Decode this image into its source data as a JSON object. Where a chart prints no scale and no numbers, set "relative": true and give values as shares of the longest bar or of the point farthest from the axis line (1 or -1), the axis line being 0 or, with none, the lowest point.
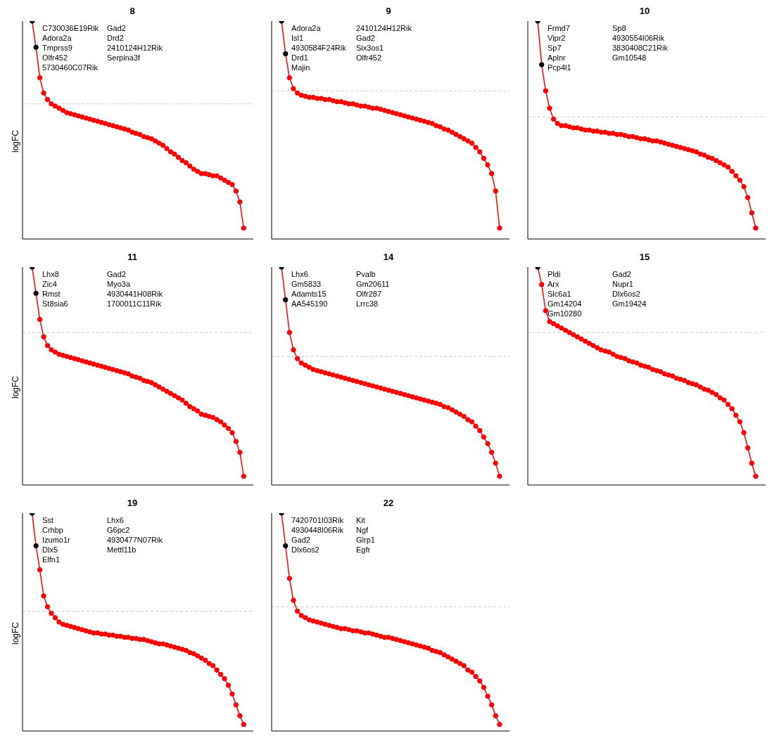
{
  "chart_data": [
    {
      "type": "line",
      "title": "8",
      "ylabel": "logFC",
      "relative": true,
      "marker": "circle",
      "categories": [
        null,
        null,
        null,
        null,
        null,
        null,
        null,
        null,
        null,
        null,
        null,
        null,
        null,
        null,
        null,
        null,
        null,
        null,
        null,
        null,
        null,
        null,
        null,
        null,
        null,
        null,
        null,
        null,
        null,
        null,
        null,
        null,
        null,
        null,
        null,
        null,
        null,
        null,
        null,
        null,
        null,
        null,
        null,
        null,
        null,
        null,
        null,
        null,
        null,
        null,
        null,
        null,
        null,
        null,
        null,
        null,
        null,
        null,
        null,
        null
      ],
      "series": [
        {
          "color": "#ff0000",
          "values": [
            null,
            null,
            1,
            0.88,
            0.74,
            0.67,
            0.64,
            0.62,
            0.61,
            0.6,
            0.59,
            0.58,
            0.575,
            0.57,
            0.565,
            0.56,
            0.555,
            0.55,
            0.545,
            0.54,
            0.535,
            0.53,
            0.525,
            0.52,
            0.515,
            0.51,
            0.505,
            0.5,
            0.49,
            0.485,
            0.48,
            0.47,
            0.465,
            0.46,
            0.45,
            0.44,
            0.43,
            0.415,
            0.4,
            0.39,
            0.375,
            0.36,
            0.35,
            0.335,
            0.32,
            0.31,
            0.3,
            0.3,
            0.295,
            0.29,
            0.29,
            0.28,
            0.27,
            0.26,
            0.25,
            0.22,
            0.17,
            0.05,
            null,
            null
          ],
          "colors": [
            null,
            null,
            "#000000",
            "#000000",
            "#ff0000",
            "#ff0000",
            "#ff0000",
            "#ff0000",
            "#ff0000",
            "#ff0000",
            "#ff0000",
            "#ff0000",
            "#ff0000",
            "#ff0000",
            "#ff0000",
            "#ff0000",
            "#ff0000",
            "#ff0000",
            "#ff0000",
            "#ff0000",
            "#ff0000",
            "#ff0000",
            "#ff0000",
            "#ff0000",
            "#ff0000",
            "#ff0000",
            "#ff0000",
            "#ff0000",
            "#ff0000",
            "#ff0000",
            "#ff0000",
            "#ff0000",
            "#ff0000",
            "#ff0000",
            "#ff0000",
            "#ff0000",
            "#ff0000",
            "#ff0000",
            "#ff0000",
            "#ff0000",
            "#ff0000",
            "#ff0000",
            "#ff0000",
            "#ff0000",
            "#ff0000",
            "#ff0000",
            "#ff0000",
            "#ff0000",
            "#ff0000",
            "#ff0000",
            "#ff0000",
            "#ff0000",
            "#ff0000",
            "#ff0000",
            "#ff0000",
            "#ff0000",
            "#ff0000",
            "#ff0000",
            null,
            null
          ]
        }
      ],
      "ref_lines": [
        {
          "axis": "y",
          "value": 0.62,
          "color": "#cccccc",
          "line_style": "dashed"
        }
      ],
      "annotations": [
        "C730036E19Rik",
        "Gad2",
        "Adora2a",
        "Drd2",
        "Tmprss9",
        "2410124H12Rik",
        "Olfr452",
        "Serpina3f",
        "5730460C07Rik"
      ]
    },
    {
      "type": "line",
      "title": "9",
      "relative": true,
      "marker": "circle",
      "categories": [
        null,
        null,
        null,
        null,
        null,
        null,
        null,
        null,
        null,
        null,
        null,
        null,
        null,
        null,
        null,
        null,
        null,
        null,
        null,
        null,
        null,
        null,
        null,
        null,
        null,
        null,
        null,
        null,
        null,
        null,
        null,
        null,
        null,
        null,
        null,
        null,
        null,
        null,
        null,
        null,
        null,
        null,
        null,
        null,
        null,
        null,
        null,
        null,
        null,
        null,
        null,
        null,
        null,
        null,
        null,
        null,
        null,
        null,
        null,
        null
      ],
      "series": [
        {
          "color": "#ff0000",
          "values": [
            null,
            null,
            1,
            0.85,
            0.74,
            0.69,
            0.67,
            0.66,
            0.655,
            0.65,
            0.65,
            0.645,
            0.645,
            0.64,
            0.64,
            0.635,
            0.63,
            0.63,
            0.625,
            0.62,
            0.62,
            0.615,
            0.61,
            0.61,
            0.605,
            0.6,
            0.6,
            0.595,
            0.59,
            0.585,
            0.58,
            0.575,
            0.57,
            0.565,
            0.56,
            0.555,
            0.55,
            0.545,
            0.54,
            0.535,
            0.53,
            0.52,
            0.515,
            0.505,
            0.5,
            0.49,
            0.48,
            0.47,
            0.46,
            0.45,
            0.44,
            0.42,
            0.4,
            0.37,
            0.34,
            0.3,
            0.22,
            0.05,
            null,
            null
          ],
          "colors": [
            null,
            null,
            "#000000",
            "#000000",
            "#ff0000",
            "#ff0000",
            "#ff0000",
            "#ff0000",
            "#ff0000",
            "#ff0000",
            "#ff0000",
            "#ff0000",
            "#ff0000",
            "#ff0000",
            "#ff0000",
            "#ff0000",
            "#ff0000",
            "#ff0000",
            "#ff0000",
            "#ff0000",
            "#ff0000",
            "#ff0000",
            "#ff0000",
            "#ff0000",
            "#ff0000",
            "#ff0000",
            "#ff0000",
            "#ff0000",
            "#ff0000",
            "#ff0000",
            "#ff0000",
            "#ff0000",
            "#ff0000",
            "#ff0000",
            "#ff0000",
            "#ff0000",
            "#ff0000",
            "#ff0000",
            "#ff0000",
            "#ff0000",
            "#ff0000",
            "#ff0000",
            "#ff0000",
            "#ff0000",
            "#ff0000",
            "#ff0000",
            "#ff0000",
            "#ff0000",
            "#ff0000",
            "#ff0000",
            "#ff0000",
            "#ff0000",
            "#ff0000",
            "#ff0000",
            "#ff0000",
            "#ff0000",
            "#ff0000",
            "#ff0000",
            null,
            null
          ]
        }
      ],
      "ref_lines": [
        {
          "axis": "y",
          "value": 0.68,
          "color": "#cccccc",
          "line_style": "dashed"
        }
      ],
      "annotations": [
        "Adora2a",
        "2410124H12Rik",
        "Isl1",
        "Gad2",
        "4930584F24Rik",
        "Six3os1",
        "Drd1",
        "Olfr452",
        "Majin"
      ]
    },
    {
      "type": "line",
      "title": "10",
      "relative": true,
      "marker": "circle",
      "categories": [
        null,
        null,
        null,
        null,
        null,
        null,
        null,
        null,
        null,
        null,
        null,
        null,
        null,
        null,
        null,
        null,
        null,
        null,
        null,
        null,
        null,
        null,
        null,
        null,
        null,
        null,
        null,
        null,
        null,
        null,
        null,
        null,
        null,
        null,
        null,
        null,
        null,
        null,
        null,
        null,
        null,
        null,
        null,
        null,
        null,
        null,
        null,
        null,
        null,
        null,
        null,
        null,
        null,
        null,
        null,
        null,
        null,
        null,
        null,
        null
      ],
      "series": [
        {
          "color": "#ff0000",
          "values": [
            null,
            null,
            1,
            0.8,
            0.68,
            0.6,
            0.55,
            0.53,
            0.52,
            0.52,
            0.515,
            0.51,
            0.51,
            0.505,
            0.5,
            0.5,
            0.495,
            0.495,
            0.49,
            0.49,
            0.485,
            0.485,
            0.48,
            0.48,
            0.475,
            0.47,
            0.47,
            0.465,
            0.46,
            0.46,
            0.455,
            0.45,
            0.45,
            0.445,
            0.44,
            0.435,
            0.43,
            0.425,
            0.42,
            0.415,
            0.41,
            0.405,
            0.4,
            0.39,
            0.385,
            0.375,
            0.37,
            0.36,
            0.35,
            0.34,
            0.33,
            0.31,
            0.29,
            0.27,
            0.24,
            0.19,
            0.12,
            0.05,
            null,
            null
          ],
          "colors": [
            null,
            null,
            "#000000",
            "#000000",
            "#ff0000",
            "#ff0000",
            "#ff0000",
            "#ff0000",
            "#ff0000",
            "#ff0000",
            "#ff0000",
            "#ff0000",
            "#ff0000",
            "#ff0000",
            "#ff0000",
            "#ff0000",
            "#ff0000",
            "#ff0000",
            "#ff0000",
            "#ff0000",
            "#ff0000",
            "#ff0000",
            "#ff0000",
            "#ff0000",
            "#ff0000",
            "#ff0000",
            "#ff0000",
            "#ff0000",
            "#ff0000",
            "#ff0000",
            "#ff0000",
            "#ff0000",
            "#ff0000",
            "#ff0000",
            "#ff0000",
            "#ff0000",
            "#ff0000",
            "#ff0000",
            "#ff0000",
            "#ff0000",
            "#ff0000",
            "#ff0000",
            "#ff0000",
            "#ff0000",
            "#ff0000",
            "#ff0000",
            "#ff0000",
            "#ff0000",
            "#ff0000",
            "#ff0000",
            "#ff0000",
            "#ff0000",
            "#ff0000",
            "#ff0000",
            "#ff0000",
            "#ff0000",
            "#ff0000",
            "#ff0000",
            null,
            null
          ]
        }
      ],
      "ref_lines": [
        {
          "axis": "y",
          "value": 0.56,
          "color": "#cccccc",
          "line_style": "dashed"
        }
      ],
      "annotations": [
        "Frmd7",
        "Sp8",
        "Vipr2",
        "4930554I06Rik",
        "Sp7",
        "3830408C21Rik",
        "Aplnr",
        "Gm10548",
        "Pcp4l1"
      ]
    },
    {
      "type": "line",
      "title": "11",
      "ylabel": "logFC",
      "relative": true,
      "marker": "circle",
      "categories": [
        null,
        null,
        null,
        null,
        null,
        null,
        null,
        null,
        null,
        null,
        null,
        null,
        null,
        null,
        null,
        null,
        null,
        null,
        null,
        null,
        null,
        null,
        null,
        null,
        null,
        null,
        null,
        null,
        null,
        null,
        null,
        null,
        null,
        null,
        null,
        null,
        null,
        null,
        null,
        null,
        null,
        null,
        null,
        null,
        null,
        null,
        null,
        null,
        null,
        null,
        null,
        null,
        null,
        null,
        null,
        null,
        null,
        null,
        null,
        null
      ],
      "series": [
        {
          "color": "#ff0000",
          "values": [
            null,
            null,
            1,
            0.88,
            0.76,
            0.68,
            0.64,
            0.62,
            0.61,
            0.6,
            0.595,
            0.59,
            0.585,
            0.58,
            0.575,
            0.57,
            0.565,
            0.56,
            0.555,
            0.55,
            0.545,
            0.54,
            0.535,
            0.53,
            0.525,
            0.52,
            0.515,
            0.51,
            0.5,
            0.495,
            0.49,
            0.48,
            0.475,
            0.47,
            0.46,
            0.45,
            0.44,
            0.43,
            0.42,
            0.41,
            0.4,
            0.39,
            0.375,
            0.36,
            0.35,
            0.34,
            0.325,
            0.32,
            0.315,
            0.31,
            0.3,
            0.29,
            0.275,
            0.26,
            0.24,
            0.2,
            0.15,
            0.04,
            null,
            null
          ],
          "colors": [
            null,
            null,
            "#000000",
            "#000000",
            "#ff0000",
            "#ff0000",
            "#ff0000",
            "#ff0000",
            "#ff0000",
            "#ff0000",
            "#ff0000",
            "#ff0000",
            "#ff0000",
            "#ff0000",
            "#ff0000",
            "#ff0000",
            "#ff0000",
            "#ff0000",
            "#ff0000",
            "#ff0000",
            "#ff0000",
            "#ff0000",
            "#ff0000",
            "#ff0000",
            "#ff0000",
            "#ff0000",
            "#ff0000",
            "#ff0000",
            "#ff0000",
            "#ff0000",
            "#ff0000",
            "#ff0000",
            "#ff0000",
            "#ff0000",
            "#ff0000",
            "#ff0000",
            "#ff0000",
            "#ff0000",
            "#ff0000",
            "#ff0000",
            "#ff0000",
            "#ff0000",
            "#ff0000",
            "#ff0000",
            "#ff0000",
            "#ff0000",
            "#ff0000",
            "#ff0000",
            "#ff0000",
            "#ff0000",
            "#ff0000",
            "#ff0000",
            "#ff0000",
            "#ff0000",
            "#ff0000",
            "#ff0000",
            "#ff0000",
            "#ff0000",
            null,
            null
          ]
        }
      ],
      "ref_lines": [
        {
          "axis": "y",
          "value": 0.7,
          "color": "#cccccc",
          "line_style": "dashed"
        }
      ],
      "annotations": [
        "Lhx8",
        "Gad2",
        "Zic4",
        "Myo3a",
        "Rmst",
        "4930441H08Rik",
        "St8sia6",
        "1700011C11Rik"
      ]
    },
    {
      "type": "line",
      "title": "14",
      "relative": true,
      "marker": "circle",
      "categories": [
        null,
        null,
        null,
        null,
        null,
        null,
        null,
        null,
        null,
        null,
        null,
        null,
        null,
        null,
        null,
        null,
        null,
        null,
        null,
        null,
        null,
        null,
        null,
        null,
        null,
        null,
        null,
        null,
        null,
        null,
        null,
        null,
        null,
        null,
        null,
        null,
        null,
        null,
        null,
        null,
        null,
        null,
        null,
        null,
        null,
        null,
        null,
        null,
        null,
        null,
        null,
        null,
        null,
        null,
        null,
        null,
        null,
        null,
        null,
        null
      ],
      "series": [
        {
          "color": "#ff0000",
          "values": [
            null,
            null,
            1,
            0.85,
            0.7,
            0.62,
            0.58,
            0.56,
            0.55,
            0.54,
            0.53,
            0.525,
            0.52,
            0.515,
            0.51,
            0.505,
            0.5,
            0.495,
            0.49,
            0.485,
            0.48,
            0.475,
            0.47,
            0.465,
            0.46,
            0.455,
            0.45,
            0.445,
            0.44,
            0.435,
            0.43,
            0.425,
            0.42,
            0.415,
            0.41,
            0.405,
            0.4,
            0.395,
            0.39,
            0.385,
            0.38,
            0.375,
            0.37,
            0.36,
            0.355,
            0.345,
            0.335,
            0.325,
            0.315,
            0.3,
            0.29,
            0.27,
            0.25,
            0.22,
            0.19,
            0.15,
            0.1,
            0.04,
            null,
            null
          ],
          "colors": [
            null,
            null,
            "#000000",
            "#000000",
            "#ff0000",
            "#ff0000",
            "#ff0000",
            "#ff0000",
            "#ff0000",
            "#ff0000",
            "#ff0000",
            "#ff0000",
            "#ff0000",
            "#ff0000",
            "#ff0000",
            "#ff0000",
            "#ff0000",
            "#ff0000",
            "#ff0000",
            "#ff0000",
            "#ff0000",
            "#ff0000",
            "#ff0000",
            "#ff0000",
            "#ff0000",
            "#ff0000",
            "#ff0000",
            "#ff0000",
            "#ff0000",
            "#ff0000",
            "#ff0000",
            "#ff0000",
            "#ff0000",
            "#ff0000",
            "#ff0000",
            "#ff0000",
            "#ff0000",
            "#ff0000",
            "#ff0000",
            "#ff0000",
            "#ff0000",
            "#ff0000",
            "#ff0000",
            "#ff0000",
            "#ff0000",
            "#ff0000",
            "#ff0000",
            "#ff0000",
            "#ff0000",
            "#ff0000",
            "#ff0000",
            "#ff0000",
            "#ff0000",
            "#ff0000",
            "#ff0000",
            "#ff0000",
            "#ff0000",
            "#ff0000",
            null,
            null
          ]
        }
      ],
      "ref_lines": [
        {
          "axis": "y",
          "value": 0.59,
          "color": "#cccccc",
          "line_style": "dashed"
        }
      ],
      "annotations": [
        "Lhx6",
        "Pvalb",
        "Gm5833",
        "Gm20611",
        "Adamts15",
        "Olfr287",
        "AA545190",
        "Lrrc38"
      ]
    },
    {
      "type": "line",
      "title": "15",
      "relative": true,
      "marker": "circle",
      "categories": [
        null,
        null,
        null,
        null,
        null,
        null,
        null,
        null,
        null,
        null,
        null,
        null,
        null,
        null,
        null,
        null,
        null,
        null,
        null,
        null,
        null,
        null,
        null,
        null,
        null,
        null,
        null,
        null,
        null,
        null,
        null,
        null,
        null,
        null,
        null,
        null,
        null,
        null,
        null,
        null,
        null,
        null,
        null,
        null,
        null,
        null,
        null,
        null,
        null,
        null,
        null,
        null,
        null,
        null,
        null,
        null,
        null,
        null,
        null,
        null
      ],
      "series": [
        {
          "color": "#ff0000",
          "values": [
            null,
            null,
            1,
            0.92,
            0.8,
            0.75,
            0.74,
            0.73,
            0.72,
            0.71,
            0.7,
            0.69,
            0.68,
            0.67,
            0.66,
            0.65,
            0.64,
            0.63,
            0.62,
            0.615,
            0.61,
            0.6,
            0.59,
            0.585,
            0.58,
            0.57,
            0.565,
            0.56,
            0.55,
            0.545,
            0.54,
            0.53,
            0.525,
            0.52,
            0.51,
            0.505,
            0.5,
            0.49,
            0.485,
            0.48,
            0.47,
            0.465,
            0.46,
            0.45,
            0.44,
            0.435,
            0.425,
            0.415,
            0.4,
            0.39,
            0.37,
            0.35,
            0.32,
            0.29,
            0.24,
            0.17,
            0.1,
            0.04,
            null,
            null
          ],
          "colors": [
            null,
            null,
            "#000000",
            "#ff0000",
            "#ff0000",
            "#ff0000",
            "#ff0000",
            "#ff0000",
            "#ff0000",
            "#ff0000",
            "#ff0000",
            "#ff0000",
            "#ff0000",
            "#ff0000",
            "#ff0000",
            "#ff0000",
            "#ff0000",
            "#ff0000",
            "#ff0000",
            "#ff0000",
            "#ff0000",
            "#ff0000",
            "#ff0000",
            "#ff0000",
            "#ff0000",
            "#ff0000",
            "#ff0000",
            "#ff0000",
            "#ff0000",
            "#ff0000",
            "#ff0000",
            "#ff0000",
            "#ff0000",
            "#ff0000",
            "#ff0000",
            "#ff0000",
            "#ff0000",
            "#ff0000",
            "#ff0000",
            "#ff0000",
            "#ff0000",
            "#ff0000",
            "#ff0000",
            "#ff0000",
            "#ff0000",
            "#ff0000",
            "#ff0000",
            "#ff0000",
            "#ff0000",
            "#ff0000",
            "#ff0000",
            "#ff0000",
            "#ff0000",
            "#ff0000",
            "#ff0000",
            "#ff0000",
            "#ff0000",
            "#ff0000",
            null,
            null
          ]
        }
      ],
      "ref_lines": [
        {
          "axis": "y",
          "value": 0.7,
          "color": "#cccccc",
          "line_style": "dashed"
        }
      ],
      "annotations": [
        "Pldi",
        "Gad2",
        "Arx",
        "Nupr1",
        "Slc6a1",
        "Dlx6os2",
        "Gm14204",
        "Gm19424",
        "Gm10280"
      ]
    },
    {
      "type": "line",
      "title": "19",
      "ylabel": "logFC",
      "relative": true,
      "marker": "circle",
      "categories": [
        null,
        null,
        null,
        null,
        null,
        null,
        null,
        null,
        null,
        null,
        null,
        null,
        null,
        null,
        null,
        null,
        null,
        null,
        null,
        null,
        null,
        null,
        null,
        null,
        null,
        null,
        null,
        null,
        null,
        null,
        null,
        null,
        null,
        null,
        null,
        null,
        null,
        null,
        null,
        null,
        null,
        null,
        null,
        null,
        null,
        null,
        null,
        null,
        null,
        null,
        null,
        null,
        null,
        null,
        null,
        null,
        null,
        null,
        null,
        null
      ],
      "series": [
        {
          "color": "#ff0000",
          "values": [
            null,
            null,
            1,
            0.85,
            0.74,
            0.62,
            0.57,
            0.54,
            0.52,
            0.5,
            0.49,
            0.485,
            0.48,
            0.475,
            0.47,
            0.465,
            0.46,
            0.455,
            0.45,
            0.45,
            0.445,
            0.445,
            0.44,
            0.44,
            0.435,
            0.435,
            0.43,
            0.43,
            0.425,
            0.425,
            0.42,
            0.42,
            0.415,
            0.41,
            0.405,
            0.4,
            0.4,
            0.395,
            0.39,
            0.385,
            0.38,
            0.375,
            0.37,
            0.36,
            0.355,
            0.345,
            0.335,
            0.325,
            0.31,
            0.3,
            0.28,
            0.26,
            0.24,
            0.21,
            0.17,
            0.12,
            0.07,
            0.03,
            null,
            null
          ],
          "colors": [
            null,
            null,
            "#000000",
            "#000000",
            "#ff0000",
            "#ff0000",
            "#ff0000",
            "#ff0000",
            "#ff0000",
            "#ff0000",
            "#ff0000",
            "#ff0000",
            "#ff0000",
            "#ff0000",
            "#ff0000",
            "#ff0000",
            "#ff0000",
            "#ff0000",
            "#ff0000",
            "#ff0000",
            "#ff0000",
            "#ff0000",
            "#ff0000",
            "#ff0000",
            "#ff0000",
            "#ff0000",
            "#ff0000",
            "#ff0000",
            "#ff0000",
            "#ff0000",
            "#ff0000",
            "#ff0000",
            "#ff0000",
            "#ff0000",
            "#ff0000",
            "#ff0000",
            "#ff0000",
            "#ff0000",
            "#ff0000",
            "#ff0000",
            "#ff0000",
            "#ff0000",
            "#ff0000",
            "#ff0000",
            "#ff0000",
            "#ff0000",
            "#ff0000",
            "#ff0000",
            "#ff0000",
            "#ff0000",
            "#ff0000",
            "#ff0000",
            "#ff0000",
            "#ff0000",
            "#ff0000",
            "#ff0000",
            "#ff0000",
            "#ff0000",
            null,
            null
          ]
        }
      ],
      "ref_lines": [
        {
          "axis": "y",
          "value": 0.55,
          "color": "#cccccc",
          "line_style": "dashed"
        }
      ],
      "annotations": [
        "Sst",
        "Lhx6",
        "Crhbp",
        "G6pc2",
        "Izumo1r",
        "4930477N07Rik",
        "Dlx5",
        "Mettl11b",
        "Elfn1"
      ]
    },
    {
      "type": "line",
      "title": "22",
      "relative": true,
      "marker": "circle",
      "categories": [
        null,
        null,
        null,
        null,
        null,
        null,
        null,
        null,
        null,
        null,
        null,
        null,
        null,
        null,
        null,
        null,
        null,
        null,
        null,
        null,
        null,
        null,
        null,
        null,
        null,
        null,
        null,
        null,
        null,
        null,
        null,
        null,
        null,
        null,
        null,
        null,
        null,
        null,
        null,
        null,
        null,
        null,
        null,
        null,
        null,
        null,
        null,
        null,
        null,
        null,
        null,
        null,
        null,
        null,
        null,
        null,
        null,
        null,
        null,
        null
      ],
      "series": [
        {
          "color": "#ff0000",
          "values": [
            null,
            null,
            1,
            0.85,
            0.7,
            0.6,
            0.55,
            0.53,
            0.52,
            0.51,
            0.505,
            0.5,
            0.495,
            0.49,
            0.485,
            0.48,
            0.475,
            0.47,
            0.47,
            0.465,
            0.46,
            0.46,
            0.455,
            0.45,
            0.45,
            0.445,
            0.44,
            0.435,
            0.43,
            0.43,
            0.425,
            0.42,
            0.415,
            0.41,
            0.405,
            0.4,
            0.395,
            0.39,
            0.385,
            0.38,
            0.37,
            0.365,
            0.36,
            0.35,
            0.34,
            0.33,
            0.32,
            0.31,
            0.3,
            0.28,
            0.27,
            0.25,
            0.23,
            0.2,
            0.16,
            0.12,
            0.07,
            0.03,
            null,
            null
          ],
          "colors": [
            null,
            null,
            "#000000",
            "#000000",
            "#ff0000",
            "#ff0000",
            "#ff0000",
            "#ff0000",
            "#ff0000",
            "#ff0000",
            "#ff0000",
            "#ff0000",
            "#ff0000",
            "#ff0000",
            "#ff0000",
            "#ff0000",
            "#ff0000",
            "#ff0000",
            "#ff0000",
            "#ff0000",
            "#ff0000",
            "#ff0000",
            "#ff0000",
            "#ff0000",
            "#ff0000",
            "#ff0000",
            "#ff0000",
            "#ff0000",
            "#ff0000",
            "#ff0000",
            "#ff0000",
            "#ff0000",
            "#ff0000",
            "#ff0000",
            "#ff0000",
            "#ff0000",
            "#ff0000",
            "#ff0000",
            "#ff0000",
            "#ff0000",
            "#ff0000",
            "#ff0000",
            "#ff0000",
            "#ff0000",
            "#ff0000",
            "#ff0000",
            "#ff0000",
            "#ff0000",
            "#ff0000",
            "#ff0000",
            "#ff0000",
            "#ff0000",
            "#ff0000",
            "#ff0000",
            "#ff0000",
            "#ff0000",
            "#ff0000",
            "#ff0000",
            null,
            null
          ]
        }
      ],
      "ref_lines": [
        {
          "axis": "y",
          "value": 0.57,
          "color": "#cccccc",
          "line_style": "dashed"
        }
      ],
      "annotations": [
        "7420701I03Rik",
        "Kit",
        "4930448I06Rik",
        "Ngf",
        "Gad2",
        "Glrp1",
        "Dlx6os2",
        "Egfr"
      ]
    }
  ]
}
